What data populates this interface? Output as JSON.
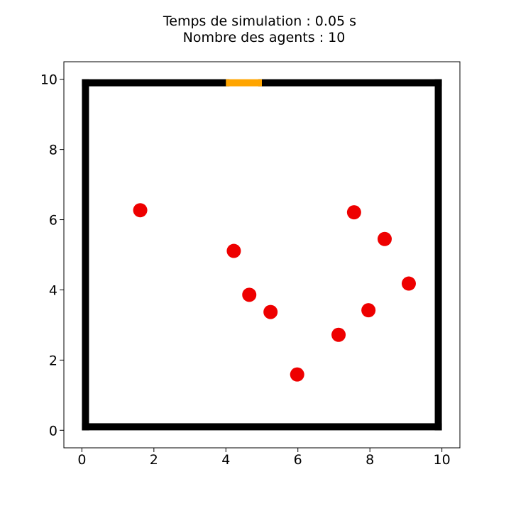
{
  "chart_data": {
    "type": "scatter",
    "title_lines": [
      "Temps de simulation : 0.05 s",
      "Nombre des agents : 10"
    ],
    "xlabel": "",
    "ylabel": "",
    "xlim": [
      -0.5,
      10.5
    ],
    "ylim": [
      -0.5,
      10.5
    ],
    "x_ticks": [
      0,
      2,
      4,
      6,
      8,
      10
    ],
    "y_ticks": [
      0,
      2,
      4,
      6,
      8,
      10
    ],
    "x_tick_labels": [
      "0",
      "2",
      "4",
      "6",
      "8",
      "10"
    ],
    "y_tick_labels": [
      "0",
      "2",
      "4",
      "6",
      "8",
      "10"
    ],
    "grid": false,
    "agents": [
      {
        "x": 1.62,
        "y": 6.27
      },
      {
        "x": 4.22,
        "y": 5.11
      },
      {
        "x": 4.65,
        "y": 3.86
      },
      {
        "x": 5.24,
        "y": 3.37
      },
      {
        "x": 5.98,
        "y": 1.59
      },
      {
        "x": 7.13,
        "y": 2.72
      },
      {
        "x": 7.56,
        "y": 6.21
      },
      {
        "x": 7.96,
        "y": 3.42
      },
      {
        "x": 8.41,
        "y": 5.45
      },
      {
        "x": 9.08,
        "y": 4.18
      }
    ],
    "walls": [
      {
        "x": [
          0.1,
          9.9
        ],
        "y": [
          0.1,
          0.1
        ]
      },
      {
        "x": [
          0.1,
          0.1
        ],
        "y": [
          0.1,
          9.9
        ]
      },
      {
        "x": [
          9.9,
          9.9
        ],
        "y": [
          0.1,
          9.9
        ]
      },
      {
        "x": [
          0.1,
          4.0
        ],
        "y": [
          9.9,
          9.9
        ]
      },
      {
        "x": [
          5.0,
          9.9
        ],
        "y": [
          9.9,
          9.9
        ]
      }
    ],
    "door": {
      "x": [
        4.0,
        5.0
      ],
      "y": [
        9.9,
        9.9
      ]
    },
    "colors": {
      "agent": "#ee0000",
      "wall": "#000000",
      "door": "#ffa500",
      "axes_frame": "#000000"
    }
  }
}
